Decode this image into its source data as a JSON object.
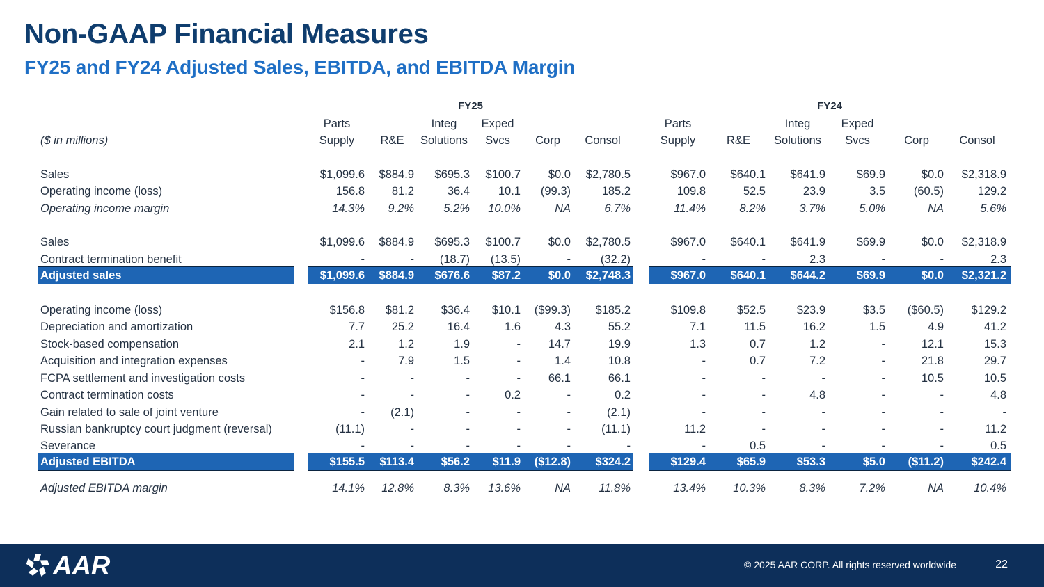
{
  "header": {
    "title": "Non-GAAP Financial Measures",
    "subtitle": "FY25 and FY24 Adjusted Sales, EBITDA, and EBITDA Margin"
  },
  "table": {
    "unit_label": "($ in millions)",
    "groups": [
      "FY25",
      "FY24"
    ],
    "col_headers_top": [
      "Parts",
      "",
      "Integ",
      "Exped",
      "",
      "",
      "Parts",
      "",
      "Integ",
      "Exped",
      "",
      ""
    ],
    "col_headers_bottom": [
      "Supply",
      "R&E",
      "Solutions",
      "Svcs",
      "Corp",
      "Consol",
      "Supply",
      "R&E",
      "Solutions",
      "Svcs",
      "Corp",
      "Consol"
    ],
    "sections": [
      {
        "rows": [
          {
            "label": "Sales",
            "style": "normal",
            "values": [
              "$1,099.6",
              "$884.9",
              "$695.3",
              "$100.7",
              "$0.0",
              "$2,780.5",
              "$967.0",
              "$640.1",
              "$641.9",
              "$69.9",
              "$0.0",
              "$2,318.9"
            ]
          },
          {
            "label": "Operating income (loss)",
            "style": "normal",
            "values": [
              "156.8",
              "81.2",
              "36.4",
              "10.1",
              "(99.3)",
              "185.2",
              "109.8",
              "52.5",
              "23.9",
              "3.5",
              "(60.5)",
              "129.2"
            ]
          },
          {
            "label": "Operating income margin",
            "style": "italic",
            "values": [
              "14.3%",
              "9.2%",
              "5.2%",
              "10.0%",
              "NA",
              "6.7%",
              "11.4%",
              "8.2%",
              "3.7%",
              "5.0%",
              "NA",
              "5.6%"
            ]
          }
        ]
      },
      {
        "rows": [
          {
            "label": "Sales",
            "style": "normal",
            "values": [
              "$1,099.6",
              "$884.9",
              "$695.3",
              "$100.7",
              "$0.0",
              "$2,780.5",
              "$967.0",
              "$640.1",
              "$641.9",
              "$69.9",
              "$0.0",
              "$2,318.9"
            ]
          },
          {
            "label": "Contract termination benefit",
            "style": "normal",
            "values": [
              "-",
              "-",
              "(18.7)",
              "(13.5)",
              "-",
              "(32.2)",
              "-",
              "-",
              "2.3",
              "-",
              "-",
              "2.3"
            ]
          },
          {
            "label": "Adjusted sales",
            "style": "band",
            "values": [
              "$1,099.6",
              "$884.9",
              "$676.6",
              "$87.2",
              "$0.0",
              "$2,748.3",
              "$967.0",
              "$640.1",
              "$644.2",
              "$69.9",
              "$0.0",
              "$2,321.2"
            ]
          }
        ]
      },
      {
        "rows": [
          {
            "label": "Operating income (loss)",
            "style": "normal",
            "values": [
              "$156.8",
              "$81.2",
              "$36.4",
              "$10.1",
              "($99.3)",
              "$185.2",
              "$109.8",
              "$52.5",
              "$23.9",
              "$3.5",
              "($60.5)",
              "$129.2"
            ]
          },
          {
            "label": "Depreciation and amortization",
            "style": "normal",
            "values": [
              "7.7",
              "25.2",
              "16.4",
              "1.6",
              "4.3",
              "55.2",
              "7.1",
              "11.5",
              "16.2",
              "1.5",
              "4.9",
              "41.2"
            ]
          },
          {
            "label": "Stock-based compensation",
            "style": "normal",
            "values": [
              "2.1",
              "1.2",
              "1.9",
              "-",
              "14.7",
              "19.9",
              "1.3",
              "0.7",
              "1.2",
              "-",
              "12.1",
              "15.3"
            ]
          },
          {
            "label": "Acquisition and integration expenses",
            "style": "normal",
            "values": [
              "-",
              "7.9",
              "1.5",
              "-",
              "1.4",
              "10.8",
              "-",
              "0.7",
              "7.2",
              "-",
              "21.8",
              "29.7"
            ]
          },
          {
            "label": "FCPA settlement and investigation costs",
            "style": "normal",
            "values": [
              "-",
              "-",
              "-",
              "-",
              "66.1",
              "66.1",
              "-",
              "-",
              "-",
              "-",
              "10.5",
              "10.5"
            ]
          },
          {
            "label": "Contract termination costs",
            "style": "normal",
            "values": [
              "-",
              "-",
              "-",
              "0.2",
              "-",
              "0.2",
              "-",
              "-",
              "4.8",
              "-",
              "-",
              "4.8"
            ]
          },
          {
            "label": "Gain related to sale of joint venture",
            "style": "normal",
            "values": [
              "-",
              "(2.1)",
              "-",
              "-",
              "-",
              "(2.1)",
              "-",
              "-",
              "-",
              "-",
              "-",
              "-"
            ]
          },
          {
            "label": "Russian bankruptcy court judgment (reversal)",
            "style": "normal",
            "values": [
              "(11.1)",
              "-",
              "-",
              "-",
              "-",
              "(11.1)",
              "11.2",
              "-",
              "-",
              "-",
              "-",
              "11.2"
            ]
          },
          {
            "label": "Severance",
            "style": "normal",
            "values": [
              "-",
              "-",
              "-",
              "-",
              "-",
              "-",
              "-",
              "0.5",
              "-",
              "-",
              "-",
              "0.5"
            ]
          },
          {
            "label": "Adjusted EBITDA",
            "style": "band",
            "values": [
              "$155.5",
              "$113.4",
              "$56.2",
              "$11.9",
              "($12.8)",
              "$324.2",
              "$129.4",
              "$65.9",
              "$53.3",
              "$5.0",
              "($11.2)",
              "$242.4"
            ]
          }
        ]
      },
      {
        "rows": [
          {
            "label": "Adjusted EBITDA margin",
            "style": "italic",
            "values": [
              "14.1%",
              "12.8%",
              "8.3%",
              "13.6%",
              "NA",
              "11.8%",
              "13.4%",
              "10.3%",
              "8.3%",
              "7.2%",
              "NA",
              "10.4%"
            ]
          }
        ]
      }
    ]
  },
  "footer": {
    "logo_text": "AAR",
    "copyright": "© 2025 AAR CORP. All rights reserved worldwide",
    "page_number": "22",
    "colors": {
      "footer_bg": "#0d2f5a",
      "band_bg": "#1e65b4",
      "title": "#0f3d6e",
      "subtitle": "#1f6fc5"
    }
  }
}
